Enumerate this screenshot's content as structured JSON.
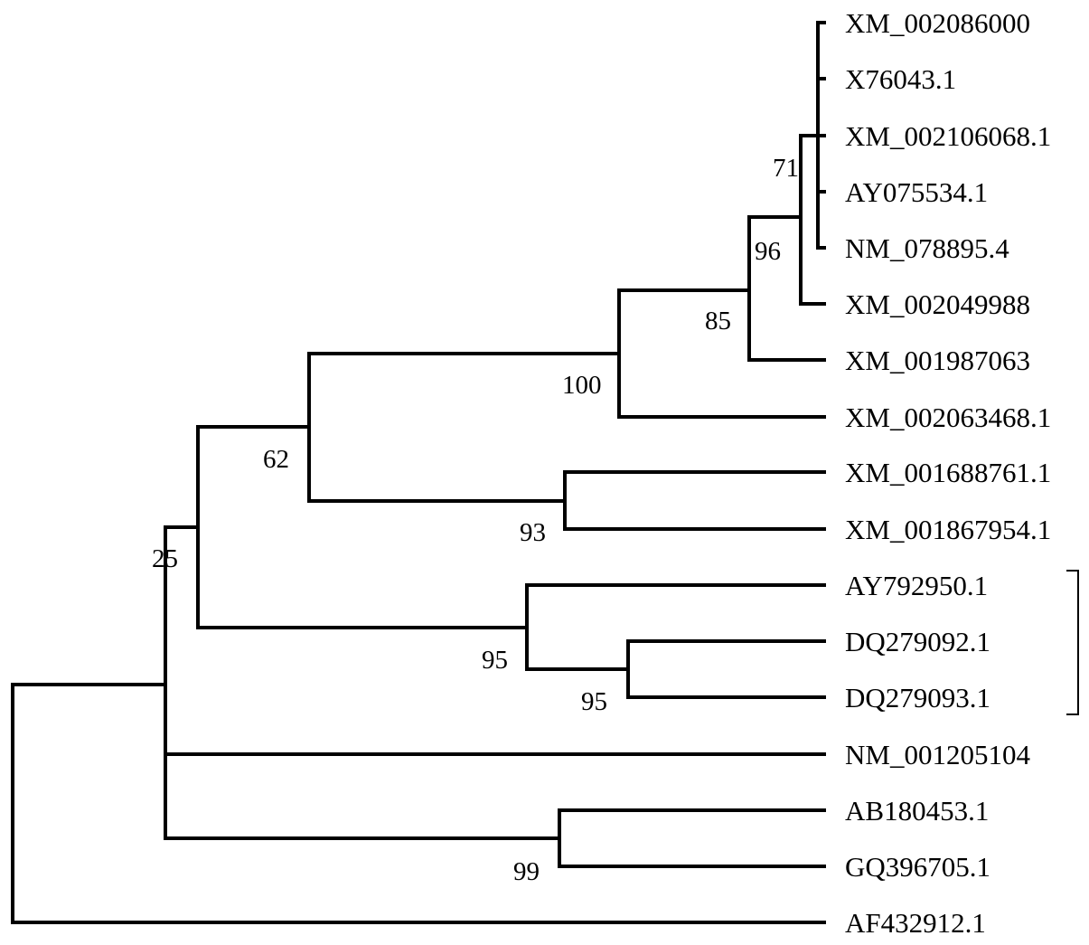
{
  "tree": {
    "leaves": [
      "XM_002086000",
      "X76043.1",
      "XM_002106068.1",
      "AY075534.1",
      "NM_078895.4",
      "XM_002049988",
      "XM_001987063",
      "XM_002063468.1",
      "XM_001688761.1",
      "XM_001867954.1",
      "AY792950.1",
      "DQ279092.1",
      "DQ279093.1",
      "NM_001205104",
      "AB180453.1",
      "GQ396705.1",
      "AF432912.1"
    ],
    "bootstrap": [
      "71",
      "96",
      "85",
      "100",
      "62",
      "93",
      "25",
      "95",
      "95",
      "99"
    ],
    "bracketed_leaves": [
      "AY792950.1",
      "DQ279092.1",
      "DQ279093.1"
    ],
    "line_color": "#000000"
  }
}
